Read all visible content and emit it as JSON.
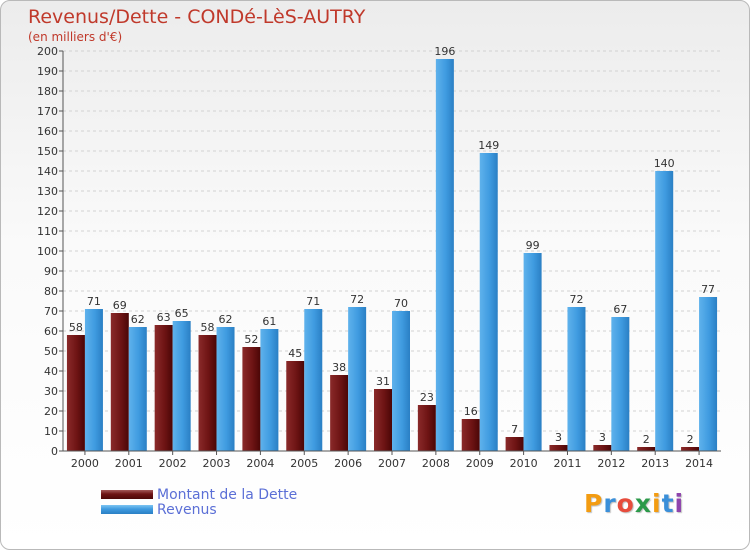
{
  "chart_data": {
    "type": "bar",
    "title": "Revenus/Dette - CONDé-LèS-AUTRY",
    "subtitle": "(en milliers d'€)",
    "categories": [
      "2000",
      "2001",
      "2002",
      "2003",
      "2004",
      "2005",
      "2006",
      "2007",
      "2008",
      "2009",
      "2010",
      "2011",
      "2012",
      "2013",
      "2014"
    ],
    "series": [
      {
        "name": "Montant de la Dette",
        "color": "#6e1414",
        "values": [
          58,
          69,
          63,
          58,
          52,
          45,
          38,
          31,
          23,
          16,
          7,
          3,
          3,
          2,
          2
        ]
      },
      {
        "name": "Revenus",
        "color": "#3f9be0",
        "values": [
          71,
          62,
          65,
          62,
          61,
          71,
          72,
          70,
          196,
          149,
          99,
          72,
          67,
          140,
          77
        ]
      }
    ],
    "ylim": [
      0,
      200
    ],
    "yticks": [
      0,
      10,
      20,
      30,
      40,
      50,
      60,
      70,
      80,
      90,
      100,
      110,
      120,
      130,
      140,
      150,
      160,
      170,
      180,
      190,
      200
    ],
    "grid": true,
    "legend_position": "bottom-left"
  },
  "legend": {
    "debt_label": "Montant de la Dette",
    "revenue_label": "Revenus"
  },
  "logo": {
    "letters": [
      "P",
      "r",
      "o",
      "x",
      "i",
      "t",
      "i"
    ],
    "colors": [
      "#f39c12",
      "#3a8fd9",
      "#e74c3c",
      "#2c9a4a",
      "#f39c12",
      "#3a8fd9",
      "#8e44ad"
    ]
  }
}
